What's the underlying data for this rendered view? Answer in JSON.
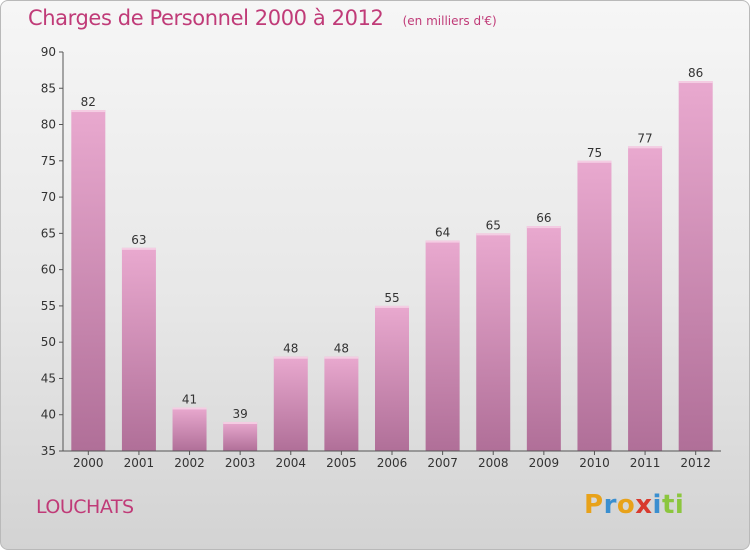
{
  "header": {
    "title": "Charges de Personnel 2000 à 2012",
    "subtitle": "(en milliers d'€)"
  },
  "footer": {
    "commune": "LOUCHATS",
    "brand_letters": [
      "P",
      "r",
      "o",
      "x",
      "i",
      "t",
      "i"
    ]
  },
  "colors": {
    "bar_top": "#e9a9cf",
    "bar_bottom": "#b06f98",
    "text_accent": "#c03b78",
    "axis": "#555555"
  },
  "chart_data": {
    "type": "bar",
    "categories": [
      "2000",
      "2001",
      "2002",
      "2003",
      "2004",
      "2005",
      "2006",
      "2007",
      "2008",
      "2009",
      "2010",
      "2011",
      "2012"
    ],
    "values": [
      82,
      63,
      41,
      39,
      48,
      48,
      55,
      64,
      65,
      66,
      75,
      77,
      86
    ],
    "title": "Charges de Personnel 2000 à 2012",
    "subtitle": "(en milliers d'€)",
    "xlabel": "",
    "ylabel": "",
    "ylim": [
      35,
      90
    ],
    "yticks": [
      35,
      40,
      45,
      50,
      55,
      60,
      65,
      70,
      75,
      80,
      85,
      90
    ],
    "grid": false,
    "data_labels": true
  }
}
